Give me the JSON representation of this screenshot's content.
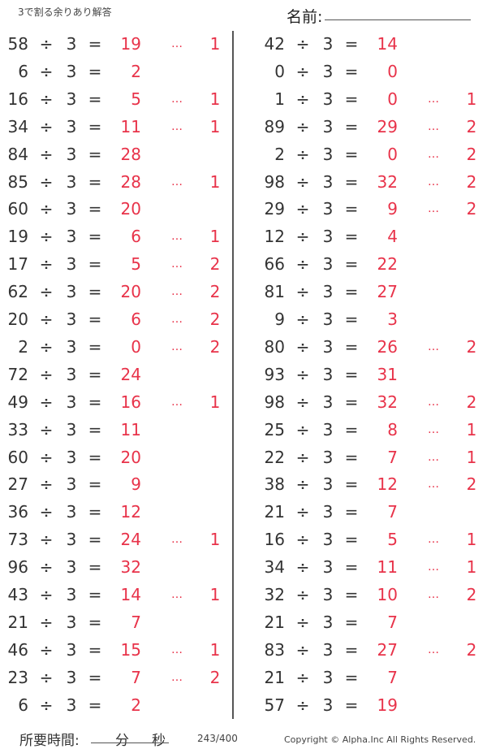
{
  "header": {
    "title": "3で割る余りあり解答",
    "name_label": "名前:"
  },
  "symbols": {
    "divide": "÷",
    "equals": "=",
    "remainder_mark": "…"
  },
  "left_problems": [
    [
      58,
      3,
      19,
      1
    ],
    [
      6,
      3,
      2,
      null
    ],
    [
      16,
      3,
      5,
      1
    ],
    [
      34,
      3,
      11,
      1
    ],
    [
      84,
      3,
      28,
      null
    ],
    [
      85,
      3,
      28,
      1
    ],
    [
      60,
      3,
      20,
      null
    ],
    [
      19,
      3,
      6,
      1
    ],
    [
      17,
      3,
      5,
      2
    ],
    [
      62,
      3,
      20,
      2
    ],
    [
      20,
      3,
      6,
      2
    ],
    [
      2,
      3,
      0,
      2
    ],
    [
      72,
      3,
      24,
      null
    ],
    [
      49,
      3,
      16,
      1
    ],
    [
      33,
      3,
      11,
      null
    ],
    [
      60,
      3,
      20,
      null
    ],
    [
      27,
      3,
      9,
      null
    ],
    [
      36,
      3,
      12,
      null
    ],
    [
      73,
      3,
      24,
      1
    ],
    [
      96,
      3,
      32,
      null
    ],
    [
      43,
      3,
      14,
      1
    ],
    [
      21,
      3,
      7,
      null
    ],
    [
      46,
      3,
      15,
      1
    ],
    [
      23,
      3,
      7,
      2
    ],
    [
      6,
      3,
      2,
      null
    ]
  ],
  "right_problems": [
    [
      42,
      3,
      14,
      null
    ],
    [
      0,
      3,
      0,
      null
    ],
    [
      1,
      3,
      0,
      1
    ],
    [
      89,
      3,
      29,
      2
    ],
    [
      2,
      3,
      0,
      2
    ],
    [
      98,
      3,
      32,
      2
    ],
    [
      29,
      3,
      9,
      2
    ],
    [
      12,
      3,
      4,
      null
    ],
    [
      66,
      3,
      22,
      null
    ],
    [
      81,
      3,
      27,
      null
    ],
    [
      9,
      3,
      3,
      null
    ],
    [
      80,
      3,
      26,
      2
    ],
    [
      93,
      3,
      31,
      null
    ],
    [
      98,
      3,
      32,
      2
    ],
    [
      25,
      3,
      8,
      1
    ],
    [
      22,
      3,
      7,
      1
    ],
    [
      38,
      3,
      12,
      2
    ],
    [
      21,
      3,
      7,
      null
    ],
    [
      16,
      3,
      5,
      1
    ],
    [
      34,
      3,
      11,
      1
    ],
    [
      32,
      3,
      10,
      2
    ],
    [
      21,
      3,
      7,
      null
    ],
    [
      83,
      3,
      27,
      2
    ],
    [
      21,
      3,
      7,
      null
    ],
    [
      57,
      3,
      19,
      null
    ]
  ],
  "footer": {
    "time_label": "所要時間:",
    "minutes": "分",
    "seconds": "秒",
    "page": "243/400",
    "copyright": "Copyright ©  Alpha.Inc All Rights Reserved."
  },
  "colors": {
    "answer": "#e8334a",
    "text": "#333333"
  }
}
